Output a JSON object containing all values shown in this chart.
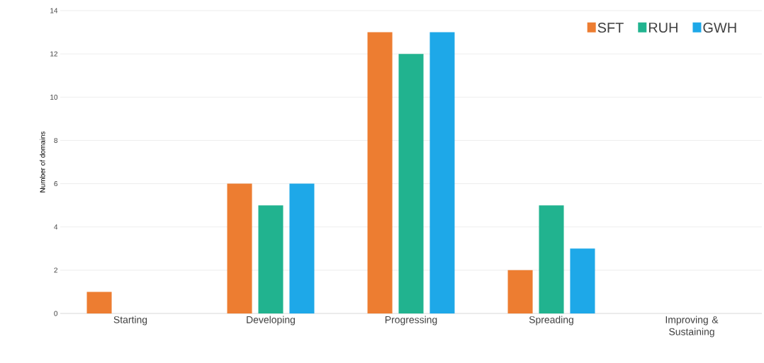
{
  "chart_data": {
    "type": "bar",
    "ylabel": "Number of domains",
    "categories": [
      "Starting",
      "Developing",
      "Progressing",
      "Spreading",
      "Improving & Sustaining"
    ],
    "series": [
      {
        "name": "SFT",
        "color": "#ed7d31",
        "values": [
          1,
          6,
          13,
          2,
          0
        ]
      },
      {
        "name": "RUH",
        "color": "#21b38f",
        "values": [
          0,
          5,
          12,
          5,
          0
        ]
      },
      {
        "name": "GWH",
        "color": "#1ea8e8",
        "values": [
          0,
          6,
          13,
          3,
          0
        ]
      }
    ],
    "ylim": [
      0,
      14
    ],
    "yticks": [
      0,
      2,
      4,
      6,
      8,
      10,
      12,
      14
    ],
    "grid": "y",
    "legend": "top right"
  }
}
